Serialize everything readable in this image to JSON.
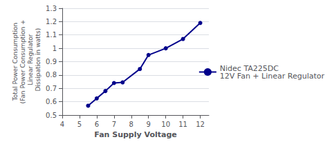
{
  "chart_data": {
    "type": "line",
    "x": [
      5.5,
      6.0,
      6.5,
      7.0,
      7.5,
      8.5,
      9.0,
      10.0,
      11.0,
      12.0
    ],
    "series": [
      {
        "name": "Nidec TA225DC\n12V Fan + Linear Regulator",
        "color": "#00008B",
        "marker": "circle",
        "values": [
          0.57,
          0.625,
          0.68,
          0.74,
          0.745,
          0.845,
          0.95,
          1.0,
          1.07,
          1.19
        ]
      }
    ],
    "xlabel": "Fan Supply Voltage",
    "ylabel": "Total Power Consumption\n(Fan Power Consumption +\n  Linear Regulator\n  Dissipation in watts)",
    "xlim": [
      4,
      12.5
    ],
    "ylim": [
      0.5,
      1.3
    ],
    "xticks": [
      4,
      5,
      6,
      7,
      8,
      9,
      10,
      11,
      12
    ],
    "yticks": [
      0.5,
      0.6,
      0.7,
      0.8,
      0.9,
      1.0,
      1.1,
      1.2,
      1.3
    ],
    "grid": true,
    "legend": "right"
  }
}
